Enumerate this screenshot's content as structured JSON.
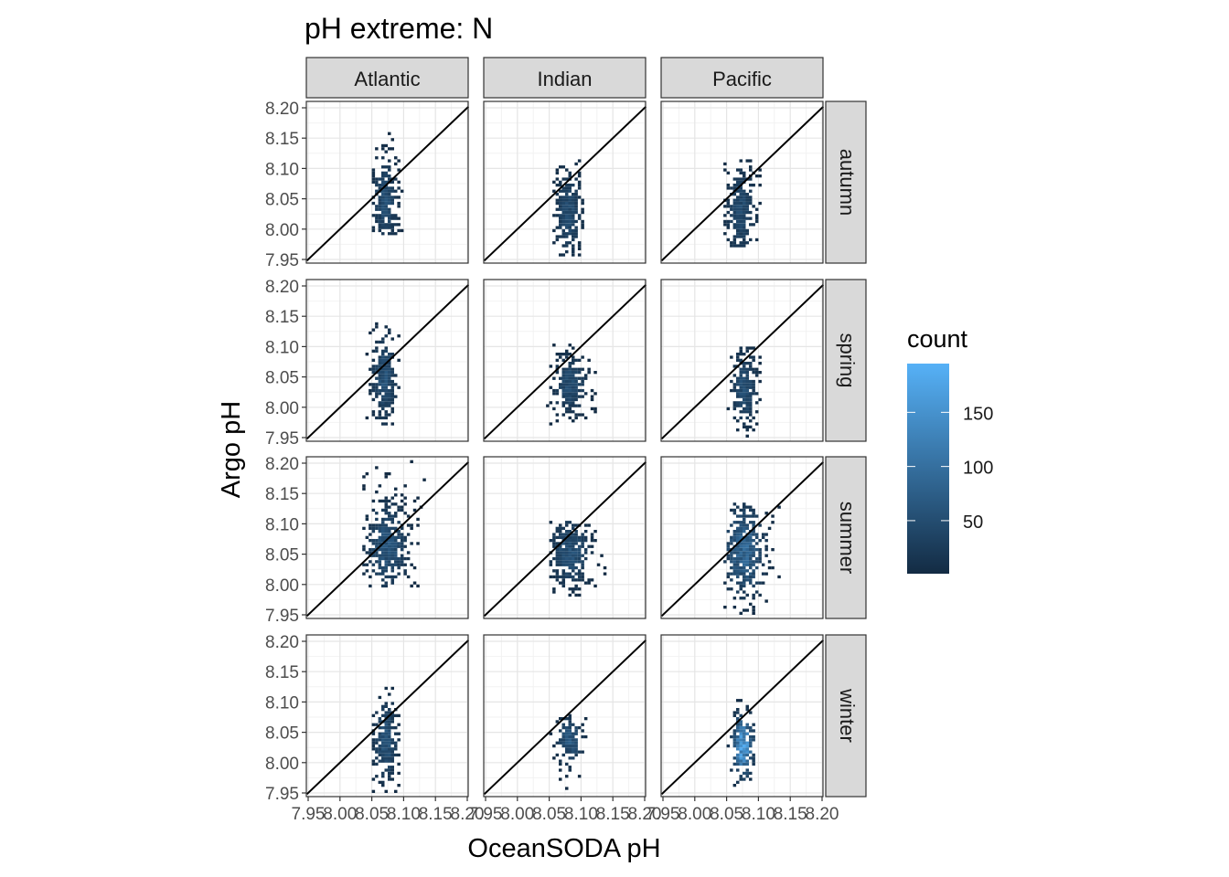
{
  "chart_data": {
    "type": "heatmap",
    "title": "pH extreme: N",
    "xlabel": "OceanSODA pH",
    "ylabel": "Argo pH",
    "facet_columns": [
      "Atlantic",
      "Indian",
      "Pacific"
    ],
    "facet_rows": [
      "autumn",
      "spring",
      "summer",
      "winter"
    ],
    "xlim": [
      7.95,
      8.2
    ],
    "ylim": [
      7.95,
      8.2
    ],
    "x_tick_labels": [
      "7.95",
      "8.00",
      "8.05",
      "8.10",
      "8.15",
      "8.20"
    ],
    "y_tick_labels": [
      "7.95",
      "8.00",
      "8.05",
      "8.10",
      "8.15",
      "8.20"
    ],
    "reference_line": "y = x",
    "grid": true,
    "legend": {
      "title": "count",
      "placement": "right",
      "ticks": [
        50,
        100,
        150
      ],
      "range": [
        1,
        195
      ],
      "low_color": "#132B43",
      "high_color": "#56B1F7"
    },
    "panels": [
      {
        "region": "Atlantic",
        "season": "autumn",
        "x_center": 8.069,
        "x_spread": 0.012,
        "y_center": 8.045,
        "y_spread": 0.045,
        "x_range": [
          8.05,
          8.095
        ],
        "y_range": [
          7.99,
          8.165
        ],
        "peak_count": 60
      },
      {
        "region": "Indian",
        "season": "autumn",
        "x_center": 8.078,
        "x_spread": 0.013,
        "y_center": 8.025,
        "y_spread": 0.045,
        "x_range": [
          8.055,
          8.1
        ],
        "y_range": [
          7.95,
          8.11
        ],
        "peak_count": 55
      },
      {
        "region": "Pacific",
        "season": "autumn",
        "x_center": 8.07,
        "x_spread": 0.014,
        "y_center": 8.03,
        "y_spread": 0.045,
        "x_range": [
          8.045,
          8.1
        ],
        "y_range": [
          7.97,
          8.13
        ],
        "peak_count": 55
      },
      {
        "region": "Atlantic",
        "season": "spring",
        "x_center": 8.067,
        "x_spread": 0.012,
        "y_center": 8.045,
        "y_spread": 0.045,
        "x_range": [
          8.04,
          8.09
        ],
        "y_range": [
          7.97,
          8.145
        ],
        "peak_count": 65
      },
      {
        "region": "Indian",
        "season": "spring",
        "x_center": 8.08,
        "x_spread": 0.016,
        "y_center": 8.035,
        "y_spread": 0.03,
        "x_range": [
          8.045,
          8.12
        ],
        "y_range": [
          7.97,
          8.1
        ],
        "peak_count": 60
      },
      {
        "region": "Pacific",
        "season": "spring",
        "x_center": 8.075,
        "x_spread": 0.013,
        "y_center": 8.03,
        "y_spread": 0.04,
        "x_range": [
          8.05,
          8.1
        ],
        "y_range": [
          7.95,
          8.095
        ],
        "peak_count": 60
      },
      {
        "region": "Atlantic",
        "season": "summer",
        "x_center": 8.072,
        "x_spread": 0.02,
        "y_center": 8.06,
        "y_spread": 0.045,
        "x_range": [
          8.035,
          8.13
        ],
        "y_range": [
          7.995,
          8.205
        ],
        "peak_count": 70
      },
      {
        "region": "Indian",
        "season": "summer",
        "x_center": 8.08,
        "x_spread": 0.02,
        "y_center": 8.05,
        "y_spread": 0.035,
        "x_range": [
          8.05,
          8.135
        ],
        "y_range": [
          7.98,
          8.1
        ],
        "peak_count": 65
      },
      {
        "region": "Pacific",
        "season": "summer",
        "x_center": 8.075,
        "x_spread": 0.02,
        "y_center": 8.055,
        "y_spread": 0.045,
        "x_range": [
          8.045,
          8.13
        ],
        "y_range": [
          7.95,
          8.13
        ],
        "peak_count": 100
      },
      {
        "region": "Atlantic",
        "season": "winter",
        "x_center": 8.07,
        "x_spread": 0.012,
        "y_center": 8.035,
        "y_spread": 0.04,
        "x_range": [
          8.05,
          8.09
        ],
        "y_range": [
          7.95,
          8.12
        ],
        "peak_count": 70
      },
      {
        "region": "Indian",
        "season": "winter",
        "x_center": 8.08,
        "x_spread": 0.012,
        "y_center": 8.035,
        "y_spread": 0.025,
        "x_range": [
          8.05,
          8.105
        ],
        "y_range": [
          7.95,
          8.08
        ],
        "peak_count": 75
      },
      {
        "region": "Pacific",
        "season": "winter",
        "x_center": 8.073,
        "x_spread": 0.01,
        "y_center": 8.025,
        "y_spread": 0.03,
        "x_range": [
          8.05,
          8.095
        ],
        "y_range": [
          7.96,
          8.1
        ],
        "peak_count": 195
      }
    ]
  }
}
